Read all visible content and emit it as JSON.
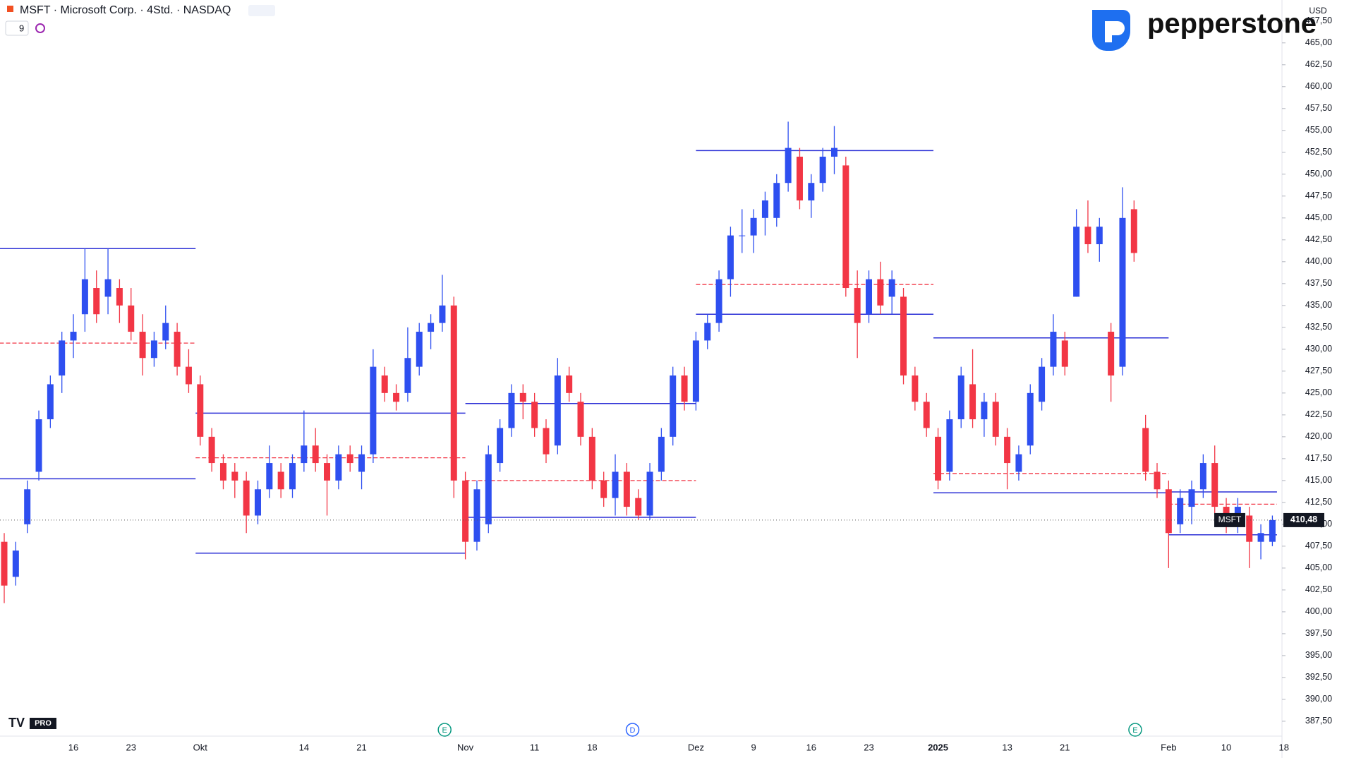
{
  "chart_data": {
    "type": "candlestick",
    "title": "MSFT · Microsoft Corp. · 4Std. · NASDAQ",
    "interval_badge": "9",
    "currency": "USD",
    "brand": "pepperstone",
    "platform": "PRO",
    "events": [
      "E",
      "D",
      "E"
    ],
    "up_color": "#2e4ff0",
    "down_color": "#f23645",
    "profile_band_color": "#2b2fd6",
    "poc_color": "#f23645",
    "categories": [
      null,
      null,
      null,
      null,
      null,
      null,
      "16",
      null,
      null,
      null,
      null,
      "23",
      null,
      null,
      null,
      null,
      null,
      "Okt",
      null,
      null,
      null,
      null,
      null,
      null,
      null,
      null,
      "14",
      null,
      null,
      null,
      null,
      "21",
      null,
      null,
      null,
      null,
      null,
      null,
      null,
      null,
      "Nov",
      null,
      null,
      null,
      null,
      null,
      "11",
      null,
      null,
      null,
      null,
      "18",
      null,
      null,
      null,
      null,
      null,
      null,
      null,
      null,
      "Dez",
      null,
      null,
      null,
      null,
      "9",
      null,
      null,
      null,
      null,
      "16",
      null,
      null,
      null,
      null,
      "23",
      null,
      null,
      null,
      null,
      null,
      "2025",
      null,
      null,
      null,
      null,
      null,
      "13",
      null,
      null,
      null,
      null,
      "21",
      null,
      null,
      null,
      null,
      null,
      null,
      null,
      null,
      "Feb",
      null,
      null,
      null,
      null,
      "10",
      null,
      null,
      null,
      null,
      "18"
    ],
    "candles": [
      [
        408,
        409,
        401,
        403
      ],
      [
        404,
        408,
        403,
        407
      ],
      [
        410,
        415,
        409,
        414
      ],
      [
        416,
        423,
        415,
        422
      ],
      [
        422,
        427,
        421,
        426
      ],
      [
        427,
        432,
        425,
        431
      ],
      [
        431,
        434,
        429,
        432
      ],
      [
        434,
        441.5,
        432,
        438
      ],
      [
        437,
        439,
        433,
        434
      ],
      [
        436,
        441.5,
        434,
        438
      ],
      [
        437,
        438,
        433,
        435
      ],
      [
        435,
        437,
        431,
        432
      ],
      [
        432,
        434,
        427,
        429
      ],
      [
        429,
        432,
        428,
        431
      ],
      [
        431,
        435,
        430,
        433
      ],
      [
        432,
        433,
        427,
        428
      ],
      [
        428,
        430,
        425,
        426
      ],
      [
        426,
        427,
        419,
        420
      ],
      [
        420,
        421,
        416,
        417
      ],
      [
        417,
        418,
        414,
        415
      ],
      [
        416,
        417,
        413,
        415
      ],
      [
        415,
        416,
        409,
        411
      ],
      [
        411,
        415,
        410,
        414
      ],
      [
        414,
        419,
        413,
        417
      ],
      [
        416,
        417,
        413,
        414
      ],
      [
        414,
        418,
        413,
        417
      ],
      [
        417,
        423,
        416,
        419
      ],
      [
        419,
        421,
        416,
        417
      ],
      [
        417,
        418,
        411,
        415
      ],
      [
        415,
        419,
        414,
        418
      ],
      [
        418,
        419,
        416,
        417
      ],
      [
        416,
        419,
        414,
        418
      ],
      [
        418,
        430,
        417,
        428
      ],
      [
        427,
        428,
        424,
        425
      ],
      [
        425,
        426,
        423,
        424
      ],
      [
        425,
        432.5,
        424,
        429
      ],
      [
        428,
        433,
        427,
        432
      ],
      [
        432,
        434,
        430,
        433
      ],
      [
        433,
        438.5,
        432,
        435
      ],
      [
        435,
        436,
        413,
        415
      ],
      [
        415,
        416,
        406,
        408
      ],
      [
        408,
        415,
        407,
        414
      ],
      [
        410,
        419,
        409,
        418
      ],
      [
        417,
        422,
        416,
        421
      ],
      [
        421,
        426,
        420,
        425
      ],
      [
        425,
        426,
        422,
        424
      ],
      [
        424,
        425,
        420,
        421
      ],
      [
        421,
        422,
        417,
        418
      ],
      [
        419,
        429,
        418,
        427
      ],
      [
        427,
        428,
        424,
        425
      ],
      [
        424,
        425,
        419,
        420
      ],
      [
        420,
        421,
        414,
        415
      ],
      [
        415,
        416,
        412,
        413
      ],
      [
        413,
        418,
        411,
        416
      ],
      [
        416,
        417,
        411,
        412
      ],
      [
        413,
        414,
        410.5,
        411
      ],
      [
        411,
        417,
        410.5,
        416
      ],
      [
        416,
        421,
        415,
        420
      ],
      [
        420,
        428,
        419,
        427
      ],
      [
        427,
        428,
        423,
        424
      ],
      [
        424,
        432,
        423,
        431
      ],
      [
        431,
        434,
        430,
        433
      ],
      [
        433,
        439,
        432,
        438
      ],
      [
        438,
        444,
        436,
        443
      ],
      [
        443,
        446,
        441,
        443
      ],
      [
        443,
        446,
        441,
        445
      ],
      [
        445,
        448,
        443,
        447
      ],
      [
        445,
        450,
        444,
        449
      ],
      [
        449,
        456,
        448,
        453
      ],
      [
        452,
        453,
        446,
        447
      ],
      [
        447,
        450,
        445,
        449
      ],
      [
        449,
        453,
        448,
        452
      ],
      [
        452,
        455.5,
        450,
        453
      ],
      [
        451,
        452,
        436,
        437
      ],
      [
        437,
        439,
        429,
        433
      ],
      [
        434,
        439,
        433,
        438
      ],
      [
        438,
        440,
        434,
        435
      ],
      [
        436,
        439,
        434,
        438
      ],
      [
        436,
        437,
        426,
        427
      ],
      [
        427,
        428,
        423,
        424
      ],
      [
        424,
        425,
        420,
        421
      ],
      [
        420,
        421,
        414,
        415
      ],
      [
        416,
        423,
        415,
        422
      ],
      [
        422,
        428,
        421,
        427
      ],
      [
        426,
        430,
        421,
        422
      ],
      [
        422,
        425,
        420,
        424
      ],
      [
        424,
        425,
        419,
        420
      ],
      [
        420,
        421,
        414,
        417
      ],
      [
        416,
        419,
        415,
        418
      ],
      [
        419,
        426,
        418,
        425
      ],
      [
        424,
        429,
        423,
        428
      ],
      [
        428,
        434,
        427,
        432
      ],
      [
        431,
        432,
        427,
        428
      ],
      [
        436,
        446,
        436,
        444
      ],
      [
        444,
        447,
        441,
        442
      ],
      [
        442,
        445,
        440,
        444
      ],
      [
        432,
        433,
        424,
        427
      ],
      [
        428,
        448.5,
        427,
        445
      ],
      [
        446,
        447,
        440,
        441
      ],
      [
        421,
        422.5,
        415,
        416
      ],
      [
        416,
        417,
        413,
        414
      ],
      [
        414,
        415,
        405,
        409
      ],
      [
        410,
        414,
        409,
        413
      ],
      [
        412,
        415,
        410,
        414
      ],
      [
        414,
        418,
        413,
        417
      ],
      [
        417,
        419,
        411,
        412
      ],
      [
        412,
        413,
        409,
        411
      ],
      [
        410,
        413,
        409,
        412
      ],
      [
        411,
        412,
        405,
        408
      ],
      [
        408,
        410,
        406,
        409
      ],
      [
        408,
        411,
        407.5,
        410.48
      ],
      null
    ],
    "profiles": [
      {
        "vah": 441.5,
        "poc": 430.7,
        "val": 415.2
      },
      {
        "vah": 422.7,
        "poc": 417.6,
        "val": 406.7
      },
      {
        "vah": 423.8,
        "poc": 415,
        "val": 410.8
      },
      {
        "vah": 452.7,
        "poc": 437.4,
        "val": 434
      },
      {
        "vah": 431.3,
        "poc": 415.8,
        "val": 413.6
      },
      {
        "vah": 413.7,
        "poc": 412.3,
        "val": 408.8
      }
    ],
    "last": {
      "symbol": "MSFT",
      "value": 410.48,
      "label": "410,48"
    },
    "ylim": [
      385.8,
      469.9
    ],
    "yticks": [
      {
        "value": 387.5,
        "label": "387,50"
      },
      {
        "value": 390,
        "label": "390,00"
      },
      {
        "value": 392.5,
        "label": "392,50"
      },
      {
        "value": 395,
        "label": "395,00"
      },
      {
        "value": 397.5,
        "label": "397,50"
      },
      {
        "value": 400,
        "label": "400,00"
      },
      {
        "value": 402.5,
        "label": "402,50"
      },
      {
        "value": 405,
        "label": "405,00"
      },
      {
        "value": 407.5,
        "label": "407,50"
      },
      {
        "value": 410,
        "label": "410,00"
      },
      {
        "value": 412.5,
        "label": "412,50"
      },
      {
        "value": 415,
        "label": "415,00"
      },
      {
        "value": 417.5,
        "label": "417,50"
      },
      {
        "value": 420,
        "label": "420,00"
      },
      {
        "value": 422.5,
        "label": "422,50"
      },
      {
        "value": 425,
        "label": "425,00"
      },
      {
        "value": 427.5,
        "label": "427,50"
      },
      {
        "value": 430,
        "label": "430,00"
      },
      {
        "value": 432.5,
        "label": "432,50"
      },
      {
        "value": 435,
        "label": "435,00"
      },
      {
        "value": 437.5,
        "label": "437,50"
      },
      {
        "value": 440,
        "label": "440,00"
      },
      {
        "value": 442.5,
        "label": "442,50"
      },
      {
        "value": 445,
        "label": "445,00"
      },
      {
        "value": 447.5,
        "label": "447,50"
      },
      {
        "value": 450,
        "label": "450,00"
      },
      {
        "value": 452.5,
        "label": "452,50"
      },
      {
        "value": 455,
        "label": "455,00"
      },
      {
        "value": 457.5,
        "label": "457,50"
      },
      {
        "value": 460,
        "label": "460,00"
      },
      {
        "value": 462.5,
        "label": "462,50"
      },
      {
        "value": 465,
        "label": "465,00"
      },
      {
        "value": 467.5,
        "label": "467,50"
      }
    ],
    "grid": false
  }
}
